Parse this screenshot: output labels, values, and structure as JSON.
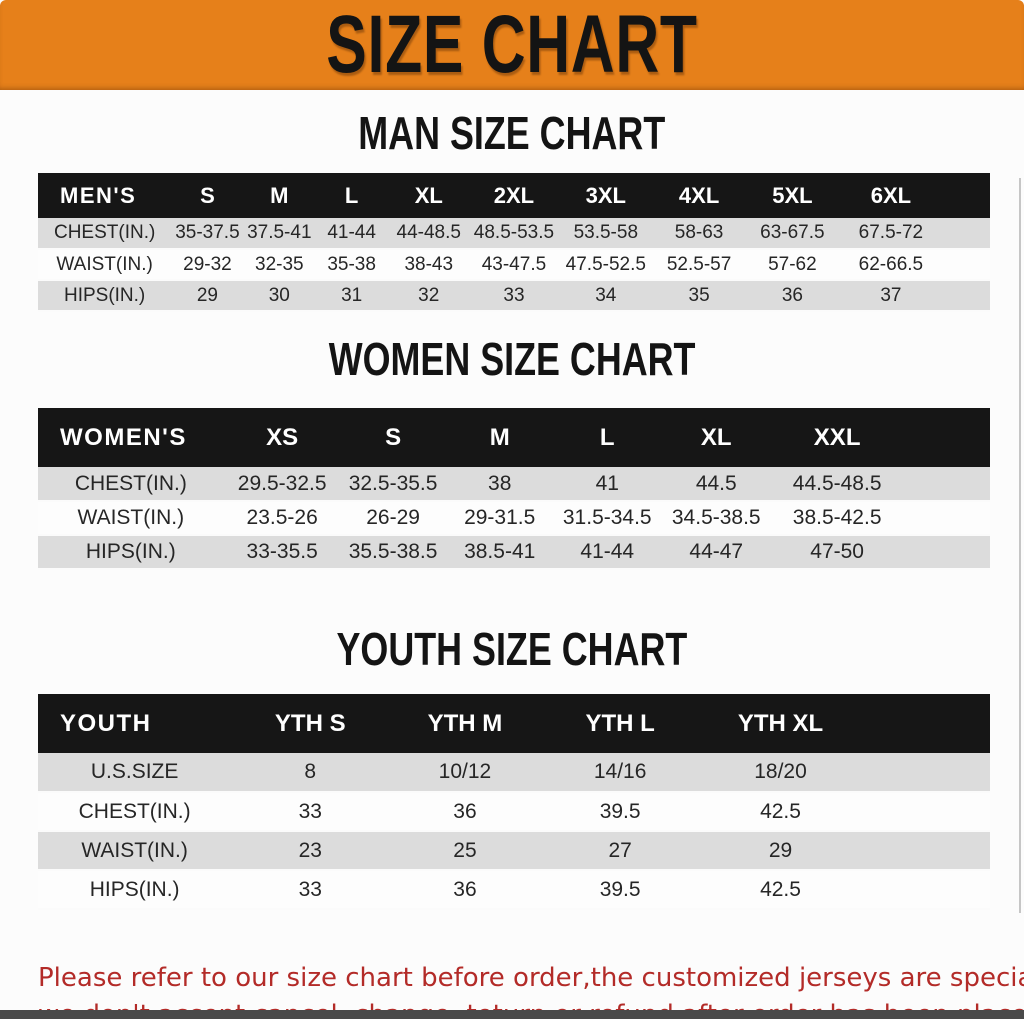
{
  "page": {
    "title": "SIZE CHART",
    "colors": {
      "banner_orange": "#e6801a",
      "note_red": "#b32b28",
      "table_header_black": "#161616",
      "stripe_gray": "#dcdcdc"
    }
  },
  "men": {
    "heading": "MAN SIZE CHART",
    "table": {
      "label": "MEN'S",
      "columns": [
        "S",
        "M",
        "L",
        "XL",
        "2XL",
        "3XL",
        "4XL",
        "5XL",
        "6XL"
      ],
      "rows": [
        {
          "label": "CHEST(IN.)",
          "values": [
            "35-37.5",
            "37.5-41",
            "41-44",
            "44-48.5",
            "48.5-53.5",
            "53.5-58",
            "58-63",
            "63-67.5",
            "67.5-72"
          ]
        },
        {
          "label": "WAIST(IN.)",
          "values": [
            "29-32",
            "32-35",
            "35-38",
            "38-43",
            "43-47.5",
            "47.5-52.5",
            "52.5-57",
            "57-62",
            "62-66.5"
          ]
        },
        {
          "label": "HIPS(IN.)",
          "values": [
            "29",
            "30",
            "31",
            "32",
            "33",
            "34",
            "35",
            "36",
            "37"
          ]
        }
      ]
    }
  },
  "women": {
    "heading": "WOMEN SIZE CHART",
    "table": {
      "label": "WOMEN'S",
      "columns": [
        "XS",
        "S",
        "M",
        "L",
        "XL",
        "XXL"
      ],
      "rows": [
        {
          "label": "CHEST(IN.)",
          "values": [
            "29.5-32.5",
            "32.5-35.5",
            "38",
            "41",
            "44.5",
            "44.5-48.5"
          ]
        },
        {
          "label": "WAIST(IN.)",
          "values": [
            "23.5-26",
            "26-29",
            "29-31.5",
            "31.5-34.5",
            "34.5-38.5",
            "38.5-42.5"
          ]
        },
        {
          "label": "HIPS(IN.)",
          "values": [
            "33-35.5",
            "35.5-38.5",
            "38.5-41",
            "41-44",
            "44-47",
            "47-50"
          ]
        }
      ]
    }
  },
  "youth": {
    "heading": "YOUTH SIZE CHART",
    "table": {
      "label": "YOUTH",
      "columns": [
        "YTH S",
        "YTH M",
        "YTH L",
        "YTH XL"
      ],
      "rows": [
        {
          "label": "U.S.SIZE",
          "values": [
            "8",
            "10/12",
            "14/16",
            "18/20"
          ]
        },
        {
          "label": "CHEST(IN.)",
          "values": [
            "33",
            "36",
            "39.5",
            "42.5"
          ]
        },
        {
          "label": "WAIST(IN.)",
          "values": [
            "23",
            "25",
            "27",
            "29"
          ]
        },
        {
          "label": "HIPS(IN.)",
          "values": [
            "33",
            "36",
            "39.5",
            "42.5"
          ]
        }
      ]
    }
  },
  "footer": {
    "line1": "Please refer to our size chart before order,the customized jerseys are special products,",
    "line2": "we don't accept cancel, change, teturn or refund after order has been placed!"
  }
}
